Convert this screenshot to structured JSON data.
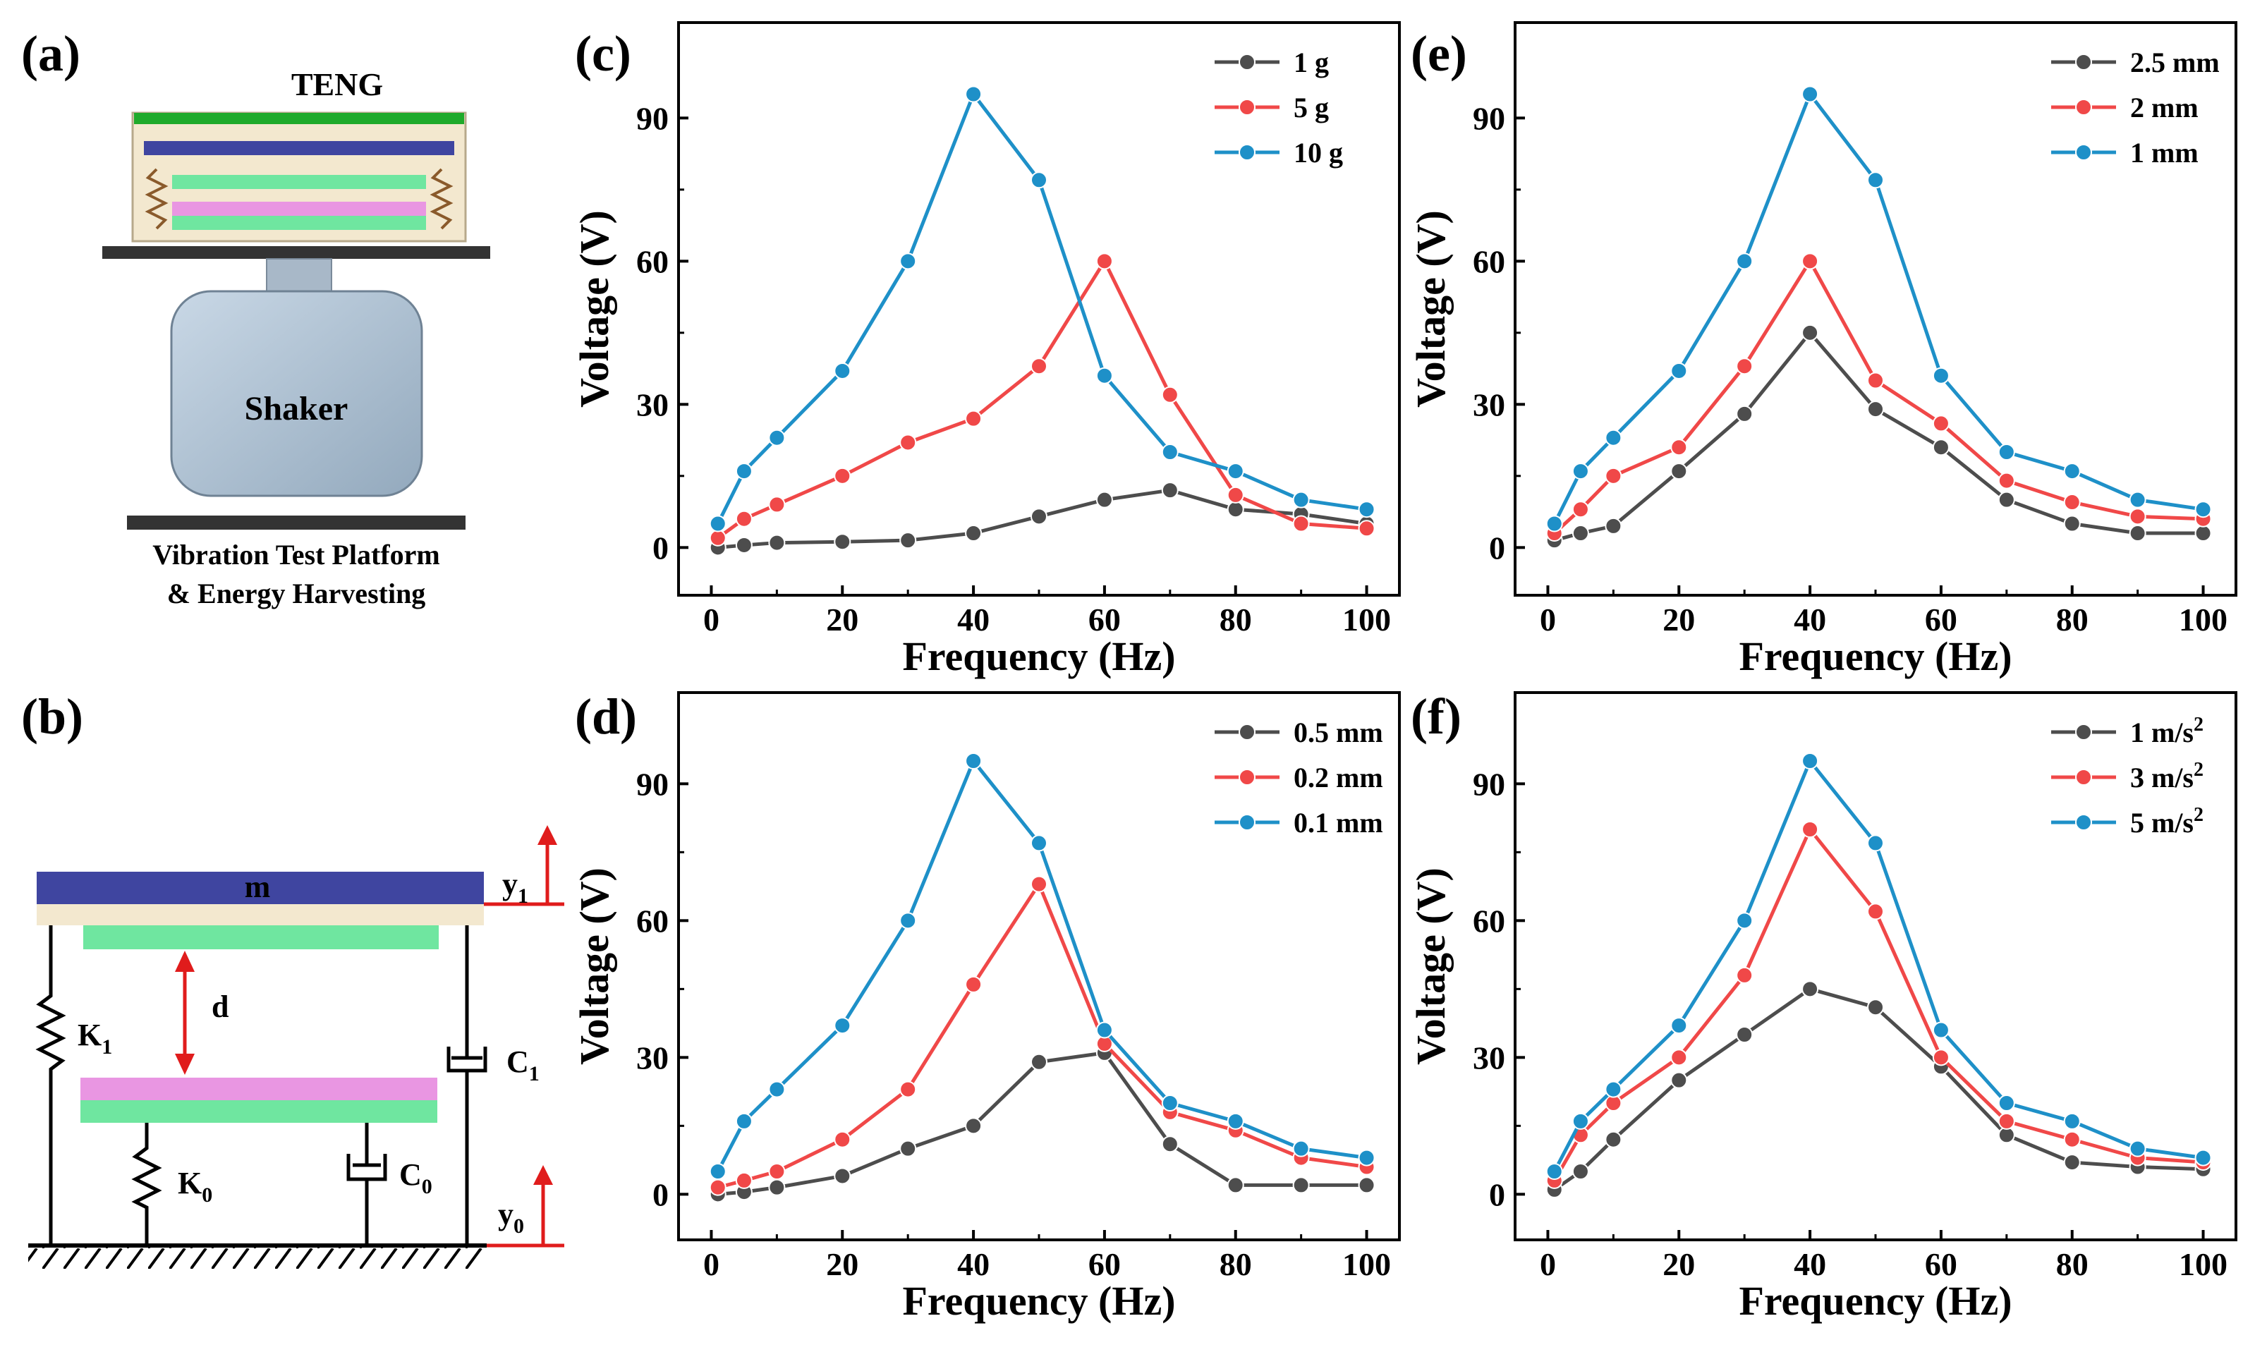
{
  "panels": {
    "a": {
      "label": "(a)",
      "teng_label": "TENG",
      "shaker_label": "Shaker",
      "caption_line1": "Vibration Test Platform",
      "caption_line2": "& Energy Harvesting"
    },
    "b": {
      "label": "(b)",
      "mass": "m",
      "gap": "d",
      "k1": "K",
      "k1_sub": "1",
      "k0": "K",
      "k0_sub": "0",
      "c1": "C",
      "c1_sub": "1",
      "c0": "C",
      "c0_sub": "0",
      "y1": "y",
      "y1_sub": "1",
      "y0": "y",
      "y0_sub": "0"
    }
  },
  "colors": {
    "series1": "#4d4d4d",
    "series2": "#f04848",
    "series3": "#1e90c8"
  },
  "chart_data": [
    {
      "id": "c",
      "label": "(c)",
      "type": "line",
      "xlabel": "Frequency (Hz)",
      "ylabel": "Voltage (V)",
      "xlim": [
        -5,
        105
      ],
      "ylim": [
        -10,
        110
      ],
      "xticks": [
        0,
        20,
        40,
        60,
        80,
        100
      ],
      "yticks": [
        0,
        30,
        60,
        90
      ],
      "legend_position": "top-right",
      "x": [
        1,
        5,
        10,
        20,
        30,
        40,
        50,
        60,
        70,
        80,
        90,
        100
      ],
      "series": [
        {
          "name": "1 g",
          "values": [
            0,
            0.5,
            1,
            1.2,
            1.5,
            3,
            6.5,
            10,
            12,
            8,
            7,
            5
          ]
        },
        {
          "name": "5 g",
          "values": [
            2,
            6,
            9,
            15,
            22,
            27,
            38,
            60,
            32,
            11,
            5,
            4
          ]
        },
        {
          "name": "10 g",
          "values": [
            5,
            16,
            23,
            37,
            60,
            95,
            77,
            36,
            20,
            16,
            10,
            8
          ]
        }
      ]
    },
    {
      "id": "e",
      "label": "(e)",
      "type": "line",
      "xlabel": "Frequency (Hz)",
      "ylabel": "Voltage (V)",
      "xlim": [
        -5,
        105
      ],
      "ylim": [
        -10,
        110
      ],
      "xticks": [
        0,
        20,
        40,
        60,
        80,
        100
      ],
      "yticks": [
        0,
        30,
        60,
        90
      ],
      "legend_position": "top-right",
      "x": [
        1,
        5,
        10,
        20,
        30,
        40,
        50,
        60,
        70,
        80,
        90,
        100
      ],
      "series": [
        {
          "name": "2.5 mm",
          "values": [
            1.5,
            3,
            4.5,
            16,
            28,
            45,
            29,
            21,
            10,
            5,
            3,
            3
          ]
        },
        {
          "name": "2 mm",
          "values": [
            3,
            8,
            15,
            21,
            38,
            60,
            35,
            26,
            14,
            9.5,
            6.5,
            6
          ]
        },
        {
          "name": "1 mm",
          "values": [
            5,
            16,
            23,
            37,
            60,
            95,
            77,
            36,
            20,
            16,
            10,
            8
          ]
        }
      ]
    },
    {
      "id": "d",
      "label": "(d)",
      "type": "line",
      "xlabel": "Frequency (Hz)",
      "ylabel": "Voltage (V)",
      "xlim": [
        -5,
        105
      ],
      "ylim": [
        -10,
        110
      ],
      "xticks": [
        0,
        20,
        40,
        60,
        80,
        100
      ],
      "yticks": [
        0,
        30,
        60,
        90
      ],
      "legend_position": "top-right",
      "x": [
        1,
        5,
        10,
        20,
        30,
        40,
        50,
        60,
        70,
        80,
        90,
        100
      ],
      "series": [
        {
          "name": "0.5 mm",
          "values": [
            0,
            0.5,
            1.5,
            4,
            10,
            15,
            29,
            31,
            11,
            2,
            2,
            2
          ]
        },
        {
          "name": "0.2 mm",
          "values": [
            1.5,
            3,
            5,
            12,
            23,
            46,
            68,
            33,
            18,
            14,
            8,
            6
          ]
        },
        {
          "name": "0.1 mm",
          "values": [
            5,
            16,
            23,
            37,
            60,
            95,
            77,
            36,
            20,
            16,
            10,
            8
          ]
        }
      ]
    },
    {
      "id": "f",
      "label": "(f)",
      "type": "line",
      "xlabel": "Frequency (Hz)",
      "ylabel": "Voltage (V)",
      "xlim": [
        -5,
        105
      ],
      "ylim": [
        -10,
        110
      ],
      "xticks": [
        0,
        20,
        40,
        60,
        80,
        100
      ],
      "yticks": [
        0,
        30,
        60,
        90
      ],
      "legend_position": "top-right",
      "x": [
        1,
        5,
        10,
        20,
        30,
        40,
        50,
        60,
        70,
        80,
        90,
        100
      ],
      "series": [
        {
          "name": "1 m/s",
          "sup": "2",
          "values": [
            1,
            5,
            12,
            25,
            35,
            45,
            41,
            28,
            13,
            7,
            6,
            5.5
          ]
        },
        {
          "name": "3 m/s",
          "sup": "2",
          "values": [
            3,
            13,
            20,
            30,
            48,
            80,
            62,
            30,
            16,
            12,
            8,
            7
          ]
        },
        {
          "name": "5 m/s",
          "sup": "2",
          "values": [
            5,
            16,
            23,
            37,
            60,
            95,
            77,
            36,
            20,
            16,
            10,
            8
          ]
        }
      ]
    }
  ]
}
